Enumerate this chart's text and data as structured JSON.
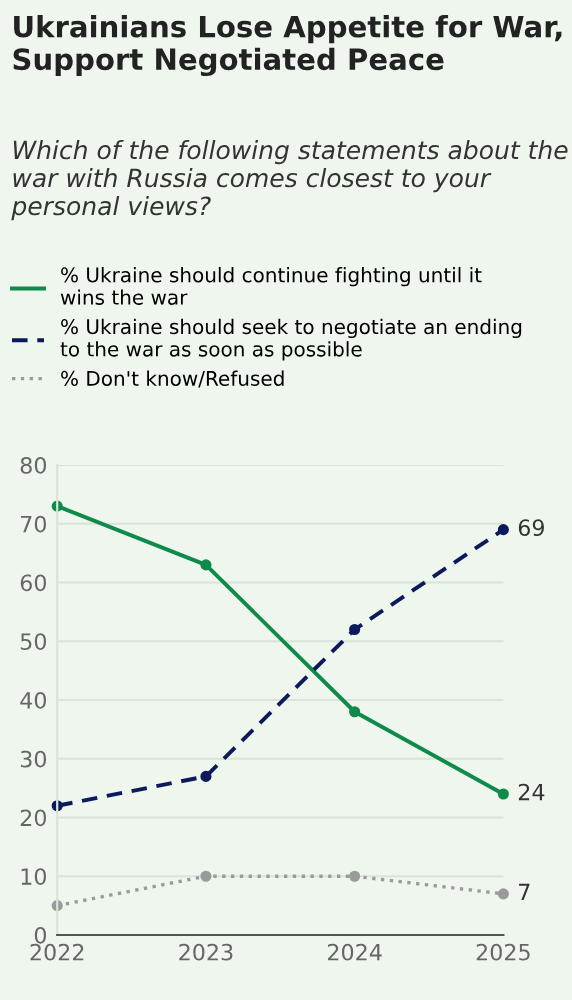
{
  "chart_data": {
    "type": "line",
    "title": "Ukrainians Lose Appetite for War, Support Negotiated Peace",
    "subtitle": "Which of the following statements about the war with Russia comes closest to your personal views?",
    "x": [
      2022,
      2023,
      2024,
      2025
    ],
    "xlim": [
      2022,
      2025
    ],
    "xticks": [
      2022,
      2023,
      2024,
      2025
    ],
    "ylim": [
      0,
      80
    ],
    "yticks": [
      0,
      10,
      20,
      30,
      40,
      50,
      60,
      70,
      80
    ],
    "grid": "y",
    "legend": "top",
    "marker": "circle",
    "series": [
      {
        "name": "% Ukraine should continue fighting until it\nwins the war",
        "color": "#0e8a4a",
        "line_style": "solid",
        "values": [
          73,
          63,
          38,
          24
        ],
        "value_labels": [
          null,
          null,
          null,
          "24"
        ]
      },
      {
        "name": "% Ukraine should seek to negotiate an ending\nto the war as soon as possible",
        "color": "#0c1a5c",
        "line_style": "dashed",
        "values": [
          22,
          27,
          52,
          69
        ],
        "value_labels": [
          null,
          null,
          null,
          "69"
        ]
      },
      {
        "name": "% Don't know/Refused",
        "color": "#9a9a9a",
        "line_style": "dotted",
        "values": [
          5,
          10,
          10,
          7
        ],
        "value_labels": [
          null,
          null,
          null,
          "7"
        ]
      }
    ]
  }
}
